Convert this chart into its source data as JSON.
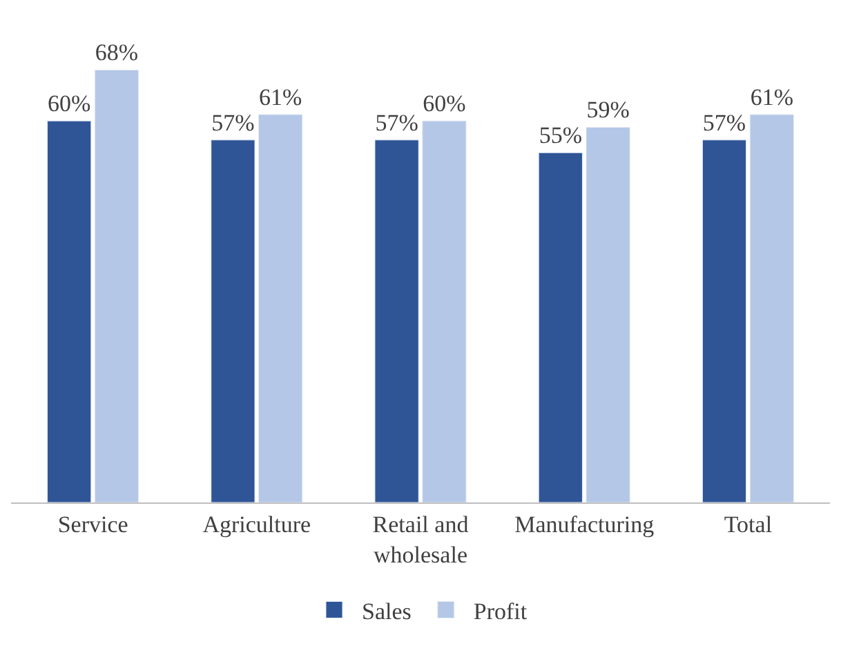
{
  "chart_data": {
    "type": "bar",
    "categories": [
      "Service",
      "Agriculture",
      "Retail and wholesale",
      "Manufacturing",
      "Total"
    ],
    "series": [
      {
        "name": "Sales",
        "color": "#2f5597",
        "values": [
          60,
          57,
          57,
          55,
          57
        ],
        "value_labels": [
          "60%",
          "57%",
          "57%",
          "55%",
          "57%"
        ]
      },
      {
        "name": "Profit",
        "color": "#b4c7e7",
        "values": [
          68,
          61,
          60,
          59,
          61
        ],
        "value_labels": [
          "68%",
          "61%",
          "60%",
          "59%",
          "61%"
        ]
      }
    ],
    "legend": "bottom"
  }
}
